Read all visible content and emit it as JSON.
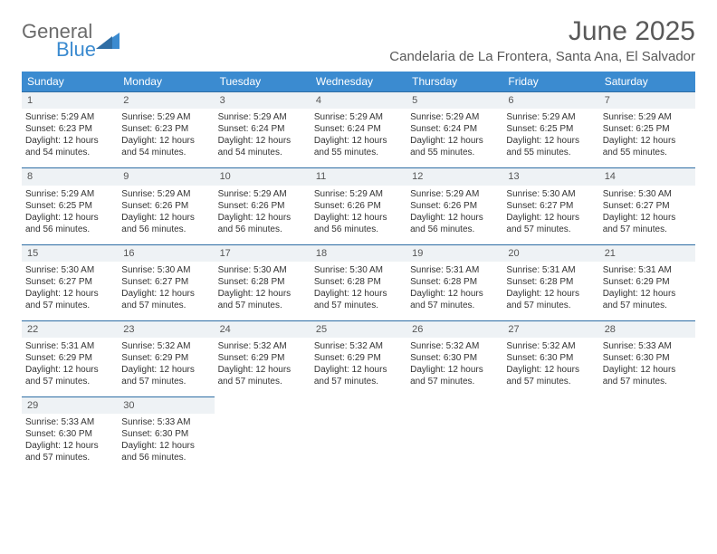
{
  "logo": {
    "line1": "General",
    "line2": "Blue"
  },
  "title": "June 2025",
  "location": "Candelaria de La Frontera, Santa Ana, El Salvador",
  "colors": {
    "header_bg": "#3b8bd0",
    "header_text": "#ffffff",
    "daynum_bg": "#eef2f5",
    "daynum_border": "#2e6da4",
    "body_text": "#333333",
    "title_text": "#595959",
    "logo_gray": "#6b6b6b",
    "logo_blue": "#3b8bd0",
    "page_bg": "#ffffff"
  },
  "typography": {
    "title_fontsize": 30,
    "location_fontsize": 15,
    "weekday_fontsize": 12,
    "daynum_fontsize": 11,
    "cell_fontsize": 10
  },
  "weekdays": [
    "Sunday",
    "Monday",
    "Tuesday",
    "Wednesday",
    "Thursday",
    "Friday",
    "Saturday"
  ],
  "labels": {
    "sunrise": "Sunrise:",
    "sunset": "Sunset:",
    "daylight": "Daylight:"
  },
  "weeks": [
    [
      {
        "d": "1",
        "sr": "5:29 AM",
        "ss": "6:23 PM",
        "dl1": "12 hours",
        "dl2": "and 54 minutes."
      },
      {
        "d": "2",
        "sr": "5:29 AM",
        "ss": "6:23 PM",
        "dl1": "12 hours",
        "dl2": "and 54 minutes."
      },
      {
        "d": "3",
        "sr": "5:29 AM",
        "ss": "6:24 PM",
        "dl1": "12 hours",
        "dl2": "and 54 minutes."
      },
      {
        "d": "4",
        "sr": "5:29 AM",
        "ss": "6:24 PM",
        "dl1": "12 hours",
        "dl2": "and 55 minutes."
      },
      {
        "d": "5",
        "sr": "5:29 AM",
        "ss": "6:24 PM",
        "dl1": "12 hours",
        "dl2": "and 55 minutes."
      },
      {
        "d": "6",
        "sr": "5:29 AM",
        "ss": "6:25 PM",
        "dl1": "12 hours",
        "dl2": "and 55 minutes."
      },
      {
        "d": "7",
        "sr": "5:29 AM",
        "ss": "6:25 PM",
        "dl1": "12 hours",
        "dl2": "and 55 minutes."
      }
    ],
    [
      {
        "d": "8",
        "sr": "5:29 AM",
        "ss": "6:25 PM",
        "dl1": "12 hours",
        "dl2": "and 56 minutes."
      },
      {
        "d": "9",
        "sr": "5:29 AM",
        "ss": "6:26 PM",
        "dl1": "12 hours",
        "dl2": "and 56 minutes."
      },
      {
        "d": "10",
        "sr": "5:29 AM",
        "ss": "6:26 PM",
        "dl1": "12 hours",
        "dl2": "and 56 minutes."
      },
      {
        "d": "11",
        "sr": "5:29 AM",
        "ss": "6:26 PM",
        "dl1": "12 hours",
        "dl2": "and 56 minutes."
      },
      {
        "d": "12",
        "sr": "5:29 AM",
        "ss": "6:26 PM",
        "dl1": "12 hours",
        "dl2": "and 56 minutes."
      },
      {
        "d": "13",
        "sr": "5:30 AM",
        "ss": "6:27 PM",
        "dl1": "12 hours",
        "dl2": "and 57 minutes."
      },
      {
        "d": "14",
        "sr": "5:30 AM",
        "ss": "6:27 PM",
        "dl1": "12 hours",
        "dl2": "and 57 minutes."
      }
    ],
    [
      {
        "d": "15",
        "sr": "5:30 AM",
        "ss": "6:27 PM",
        "dl1": "12 hours",
        "dl2": "and 57 minutes."
      },
      {
        "d": "16",
        "sr": "5:30 AM",
        "ss": "6:27 PM",
        "dl1": "12 hours",
        "dl2": "and 57 minutes."
      },
      {
        "d": "17",
        "sr": "5:30 AM",
        "ss": "6:28 PM",
        "dl1": "12 hours",
        "dl2": "and 57 minutes."
      },
      {
        "d": "18",
        "sr": "5:30 AM",
        "ss": "6:28 PM",
        "dl1": "12 hours",
        "dl2": "and 57 minutes."
      },
      {
        "d": "19",
        "sr": "5:31 AM",
        "ss": "6:28 PM",
        "dl1": "12 hours",
        "dl2": "and 57 minutes."
      },
      {
        "d": "20",
        "sr": "5:31 AM",
        "ss": "6:28 PM",
        "dl1": "12 hours",
        "dl2": "and 57 minutes."
      },
      {
        "d": "21",
        "sr": "5:31 AM",
        "ss": "6:29 PM",
        "dl1": "12 hours",
        "dl2": "and 57 minutes."
      }
    ],
    [
      {
        "d": "22",
        "sr": "5:31 AM",
        "ss": "6:29 PM",
        "dl1": "12 hours",
        "dl2": "and 57 minutes."
      },
      {
        "d": "23",
        "sr": "5:32 AM",
        "ss": "6:29 PM",
        "dl1": "12 hours",
        "dl2": "and 57 minutes."
      },
      {
        "d": "24",
        "sr": "5:32 AM",
        "ss": "6:29 PM",
        "dl1": "12 hours",
        "dl2": "and 57 minutes."
      },
      {
        "d": "25",
        "sr": "5:32 AM",
        "ss": "6:29 PM",
        "dl1": "12 hours",
        "dl2": "and 57 minutes."
      },
      {
        "d": "26",
        "sr": "5:32 AM",
        "ss": "6:30 PM",
        "dl1": "12 hours",
        "dl2": "and 57 minutes."
      },
      {
        "d": "27",
        "sr": "5:32 AM",
        "ss": "6:30 PM",
        "dl1": "12 hours",
        "dl2": "and 57 minutes."
      },
      {
        "d": "28",
        "sr": "5:33 AM",
        "ss": "6:30 PM",
        "dl1": "12 hours",
        "dl2": "and 57 minutes."
      }
    ],
    [
      {
        "d": "29",
        "sr": "5:33 AM",
        "ss": "6:30 PM",
        "dl1": "12 hours",
        "dl2": "and 57 minutes."
      },
      {
        "d": "30",
        "sr": "5:33 AM",
        "ss": "6:30 PM",
        "dl1": "12 hours",
        "dl2": "and 56 minutes."
      },
      null,
      null,
      null,
      null,
      null
    ]
  ]
}
